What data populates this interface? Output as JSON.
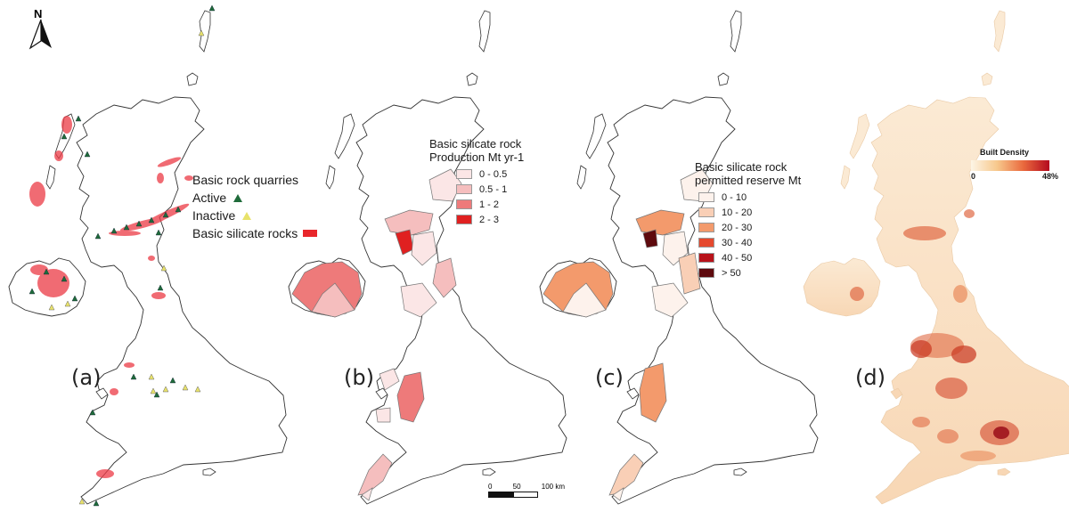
{
  "north_arrow": {
    "label": "N"
  },
  "panels": [
    {
      "id": "a",
      "label": "(a)"
    },
    {
      "id": "b",
      "label": "(b)"
    },
    {
      "id": "c",
      "label": "(c)"
    },
    {
      "id": "d",
      "label": "(d)"
    }
  ],
  "legend_a": {
    "title": "Basic rock quarries",
    "active": "Active",
    "inactive": "Inactive",
    "rocks": "Basic silicate rocks",
    "colors": {
      "active": "#1f6b3a",
      "inactive": "#e8e26a",
      "rocks": "#e8262b"
    }
  },
  "legend_b": {
    "title_line1": "Basic silicate rock",
    "title_line2": "Production Mt yr-1",
    "classes": [
      {
        "label": "0 - 0.5",
        "color": "#fbe6e6"
      },
      {
        "label": "0.5 - 1",
        "color": "#f5bebe"
      },
      {
        "label": "1 - 2",
        "color": "#ee7a7a"
      },
      {
        "label": "2 - 3",
        "color": "#e02020"
      }
    ]
  },
  "legend_c": {
    "title_line1": "Basic silicate rock",
    "title_line2": "permitted reserve Mt",
    "classes": [
      {
        "label": "0 - 10",
        "color": "#fdf2ec"
      },
      {
        "label": "10 - 20",
        "color": "#f9cfb6"
      },
      {
        "label": "20 - 30",
        "color": "#f39a6c"
      },
      {
        "label": "30 - 40",
        "color": "#e5492e"
      },
      {
        "label": "40 - 50",
        "color": "#b8121a"
      },
      {
        "label": "> 50",
        "color": "#5e0a0e"
      }
    ]
  },
  "legend_d": {
    "title": "Built Density",
    "min": "0",
    "max": "48%"
  },
  "scale_bar": {
    "t0": "0",
    "t1": "50",
    "t2": "100 km"
  }
}
